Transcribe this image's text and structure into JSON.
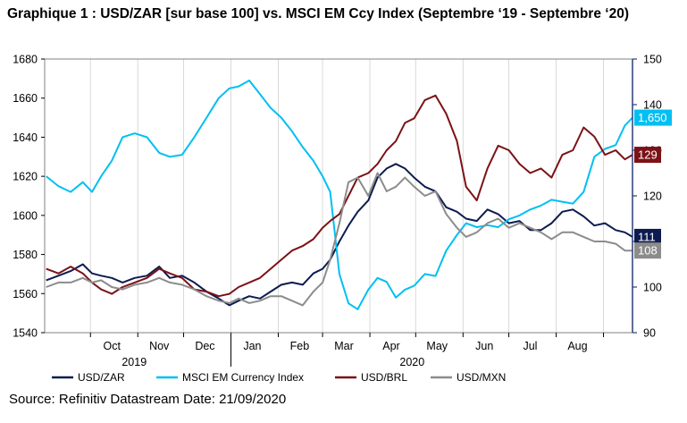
{
  "title": "Graphique 1 : USD/ZAR [sur base 100] vs. MSCI EM Ccy Index (Septembre ‘19 - Septembre ‘20)",
  "source": "Source: Refinitiv Datastream Date: 21/09/2020",
  "chart_data": {
    "type": "line",
    "left_axis": {
      "range": [
        1540,
        1680
      ],
      "ticks": [
        "1680",
        "1660",
        "1640",
        "1620",
        "1600",
        "1580",
        "1560",
        "1540"
      ]
    },
    "right_axis": {
      "range": [
        90,
        150
      ],
      "ticks": [
        "150",
        "140",
        "130",
        "120",
        "110",
        "100",
        "90"
      ],
      "color": "#2c3e7a"
    },
    "x_range": [
      "2019-09-01",
      "2020-09-20"
    ],
    "month_labels": [
      {
        "label": "Oct",
        "date": "2019-10-15"
      },
      {
        "label": "Nov",
        "date": "2019-11-15"
      },
      {
        "label": "Dec",
        "date": "2019-12-15"
      },
      {
        "label": "Jan",
        "date": "2020-01-15"
      },
      {
        "label": "Feb",
        "date": "2020-02-15"
      },
      {
        "label": "Mar",
        "date": "2020-03-15"
      },
      {
        "label": "Apr",
        "date": "2020-04-15"
      },
      {
        "label": "May",
        "date": "2020-05-15"
      },
      {
        "label": "Jun",
        "date": "2020-06-15"
      },
      {
        "label": "Jul",
        "date": "2020-07-15"
      },
      {
        "label": "Aug",
        "date": "2020-08-15"
      }
    ],
    "month_ticks": [
      "2019-10-01",
      "2019-11-01",
      "2019-12-01",
      "2020-01-01",
      "2020-02-01",
      "2020-03-01",
      "2020-04-01",
      "2020-05-01",
      "2020-06-01",
      "2020-07-01",
      "2020-08-01",
      "2020-09-01"
    ],
    "year_labels": [
      {
        "label": "2019",
        "date": "2019-11-01"
      },
      {
        "label": "2020",
        "date": "2020-05-01"
      }
    ],
    "series": [
      {
        "name": "USD/ZAR",
        "axis": "right",
        "color": "#0d1b4f",
        "end_label": "111",
        "points": [
          [
            "2019-09-02",
            101.5
          ],
          [
            "2019-09-10",
            102.5
          ],
          [
            "2019-09-18",
            103.5
          ],
          [
            "2019-09-26",
            105
          ],
          [
            "2019-10-02",
            103
          ],
          [
            "2019-10-08",
            102.5
          ],
          [
            "2019-10-15",
            102
          ],
          [
            "2019-10-22",
            101
          ],
          [
            "2019-10-30",
            102
          ],
          [
            "2019-11-07",
            102.5
          ],
          [
            "2019-11-15",
            104.5
          ],
          [
            "2019-11-22",
            102
          ],
          [
            "2019-11-30",
            102.5
          ],
          [
            "2019-12-08",
            101
          ],
          [
            "2019-12-16",
            99
          ],
          [
            "2019-12-24",
            97.5
          ],
          [
            "2019-12-31",
            96
          ],
          [
            "2020-01-06",
            97
          ],
          [
            "2020-01-13",
            98
          ],
          [
            "2020-01-20",
            97.5
          ],
          [
            "2020-01-27",
            99
          ],
          [
            "2020-02-03",
            100.5
          ],
          [
            "2020-02-10",
            101
          ],
          [
            "2020-02-17",
            100.5
          ],
          [
            "2020-02-24",
            103
          ],
          [
            "2020-03-01",
            104
          ],
          [
            "2020-03-06",
            106
          ],
          [
            "2020-03-12",
            110
          ],
          [
            "2020-03-18",
            113.5
          ],
          [
            "2020-03-24",
            116.5
          ],
          [
            "2020-03-31",
            119
          ],
          [
            "2020-04-06",
            124
          ],
          [
            "2020-04-12",
            126
          ],
          [
            "2020-04-18",
            127
          ],
          [
            "2020-04-24",
            126
          ],
          [
            "2020-04-30",
            124
          ],
          [
            "2020-05-07",
            122
          ],
          [
            "2020-05-14",
            121
          ],
          [
            "2020-05-21",
            117.5
          ],
          [
            "2020-05-28",
            116.5
          ],
          [
            "2020-06-03",
            115
          ],
          [
            "2020-06-10",
            114.5
          ],
          [
            "2020-06-17",
            117
          ],
          [
            "2020-06-24",
            116
          ],
          [
            "2020-07-01",
            114
          ],
          [
            "2020-07-08",
            114.5
          ],
          [
            "2020-07-15",
            112.5
          ],
          [
            "2020-07-22",
            112.5
          ],
          [
            "2020-07-29",
            114
          ],
          [
            "2020-08-05",
            116.5
          ],
          [
            "2020-08-12",
            117
          ],
          [
            "2020-08-19",
            115.5
          ],
          [
            "2020-08-26",
            113.5
          ],
          [
            "2020-09-02",
            114
          ],
          [
            "2020-09-09",
            112.5
          ],
          [
            "2020-09-15",
            112
          ],
          [
            "2020-09-20",
            111
          ]
        ]
      },
      {
        "name": "MSCI EM Currency Index",
        "axis": "left",
        "color": "#00bff3",
        "end_label": "1,650",
        "points": [
          [
            "2019-09-02",
            1620
          ],
          [
            "2019-09-10",
            1615
          ],
          [
            "2019-09-18",
            1612
          ],
          [
            "2019-09-26",
            1617
          ],
          [
            "2019-10-02",
            1612
          ],
          [
            "2019-10-08",
            1620
          ],
          [
            "2019-10-15",
            1628
          ],
          [
            "2019-10-22",
            1640
          ],
          [
            "2019-10-30",
            1642
          ],
          [
            "2019-11-07",
            1640
          ],
          [
            "2019-11-15",
            1632
          ],
          [
            "2019-11-22",
            1630
          ],
          [
            "2019-11-30",
            1631
          ],
          [
            "2019-12-08",
            1640
          ],
          [
            "2019-12-16",
            1650
          ],
          [
            "2019-12-24",
            1660
          ],
          [
            "2019-12-31",
            1665
          ],
          [
            "2020-01-06",
            1666
          ],
          [
            "2020-01-13",
            1669
          ],
          [
            "2020-01-20",
            1662
          ],
          [
            "2020-01-27",
            1655
          ],
          [
            "2020-02-03",
            1650
          ],
          [
            "2020-02-10",
            1643
          ],
          [
            "2020-02-17",
            1635
          ],
          [
            "2020-02-24",
            1628
          ],
          [
            "2020-03-01",
            1620
          ],
          [
            "2020-03-06",
            1612
          ],
          [
            "2020-03-12",
            1570
          ],
          [
            "2020-03-18",
            1555
          ],
          [
            "2020-03-24",
            1552
          ],
          [
            "2020-03-31",
            1562
          ],
          [
            "2020-04-06",
            1568
          ],
          [
            "2020-04-12",
            1566
          ],
          [
            "2020-04-18",
            1558
          ],
          [
            "2020-04-24",
            1562
          ],
          [
            "2020-04-30",
            1564
          ],
          [
            "2020-05-07",
            1570
          ],
          [
            "2020-05-14",
            1569
          ],
          [
            "2020-05-21",
            1582
          ],
          [
            "2020-05-28",
            1590
          ],
          [
            "2020-06-03",
            1596
          ],
          [
            "2020-06-10",
            1594
          ],
          [
            "2020-06-17",
            1595
          ],
          [
            "2020-06-24",
            1594
          ],
          [
            "2020-07-01",
            1598
          ],
          [
            "2020-07-08",
            1600
          ],
          [
            "2020-07-15",
            1603
          ],
          [
            "2020-07-22",
            1605
          ],
          [
            "2020-07-29",
            1608
          ],
          [
            "2020-08-05",
            1607
          ],
          [
            "2020-08-12",
            1606
          ],
          [
            "2020-08-19",
            1612
          ],
          [
            "2020-08-26",
            1630
          ],
          [
            "2020-09-02",
            1634
          ],
          [
            "2020-09-09",
            1636
          ],
          [
            "2020-09-15",
            1646
          ],
          [
            "2020-09-20",
            1650
          ]
        ]
      },
      {
        "name": "USD/BRL",
        "axis": "right",
        "color": "#7b1216",
        "end_label": "129",
        "points": [
          [
            "2019-09-02",
            104
          ],
          [
            "2019-09-10",
            103
          ],
          [
            "2019-09-18",
            104.5
          ],
          [
            "2019-09-26",
            103
          ],
          [
            "2019-10-02",
            101
          ],
          [
            "2019-10-08",
            99.5
          ],
          [
            "2019-10-15",
            98.5
          ],
          [
            "2019-10-22",
            100
          ],
          [
            "2019-10-30",
            101
          ],
          [
            "2019-11-07",
            102
          ],
          [
            "2019-11-15",
            104
          ],
          [
            "2019-11-22",
            103
          ],
          [
            "2019-11-30",
            102
          ],
          [
            "2019-12-08",
            99.5
          ],
          [
            "2019-12-16",
            99
          ],
          [
            "2019-12-24",
            98
          ],
          [
            "2019-12-31",
            98.5
          ],
          [
            "2020-01-06",
            100
          ],
          [
            "2020-01-13",
            101
          ],
          [
            "2020-01-20",
            102
          ],
          [
            "2020-01-27",
            104
          ],
          [
            "2020-02-03",
            106
          ],
          [
            "2020-02-10",
            108
          ],
          [
            "2020-02-17",
            109
          ],
          [
            "2020-02-24",
            110.5
          ],
          [
            "2020-03-01",
            113
          ],
          [
            "2020-03-06",
            114.5
          ],
          [
            "2020-03-12",
            116
          ],
          [
            "2020-03-18",
            120
          ],
          [
            "2020-03-24",
            124
          ],
          [
            "2020-03-31",
            125
          ],
          [
            "2020-04-06",
            127
          ],
          [
            "2020-04-12",
            130
          ],
          [
            "2020-04-18",
            132
          ],
          [
            "2020-04-24",
            136
          ],
          [
            "2020-04-30",
            137
          ],
          [
            "2020-05-07",
            141
          ],
          [
            "2020-05-14",
            142
          ],
          [
            "2020-05-21",
            138
          ],
          [
            "2020-05-28",
            132
          ],
          [
            "2020-06-03",
            122
          ],
          [
            "2020-06-10",
            119
          ],
          [
            "2020-06-17",
            126
          ],
          [
            "2020-06-24",
            131
          ],
          [
            "2020-07-01",
            130
          ],
          [
            "2020-07-08",
            127
          ],
          [
            "2020-07-15",
            125
          ],
          [
            "2020-07-22",
            126
          ],
          [
            "2020-07-29",
            124
          ],
          [
            "2020-08-05",
            129
          ],
          [
            "2020-08-12",
            130
          ],
          [
            "2020-08-19",
            135
          ],
          [
            "2020-08-26",
            133
          ],
          [
            "2020-09-02",
            129
          ],
          [
            "2020-09-09",
            130
          ],
          [
            "2020-09-15",
            128
          ],
          [
            "2020-09-20",
            129
          ]
        ]
      },
      {
        "name": "USD/MXN",
        "axis": "right",
        "color": "#8c8c8c",
        "end_label": "108",
        "points": [
          [
            "2019-09-02",
            100
          ],
          [
            "2019-09-10",
            101
          ],
          [
            "2019-09-18",
            101
          ],
          [
            "2019-09-26",
            102
          ],
          [
            "2019-10-02",
            101
          ],
          [
            "2019-10-08",
            101.5
          ],
          [
            "2019-10-15",
            100
          ],
          [
            "2019-10-22",
            99.5
          ],
          [
            "2019-10-30",
            100.5
          ],
          [
            "2019-11-07",
            101
          ],
          [
            "2019-11-15",
            102
          ],
          [
            "2019-11-22",
            101
          ],
          [
            "2019-11-30",
            100.5
          ],
          [
            "2019-12-08",
            99.5
          ],
          [
            "2019-12-16",
            98
          ],
          [
            "2019-12-24",
            97
          ],
          [
            "2019-12-31",
            96.5
          ],
          [
            "2020-01-06",
            97.5
          ],
          [
            "2020-01-13",
            96.5
          ],
          [
            "2020-01-20",
            97
          ],
          [
            "2020-01-27",
            98
          ],
          [
            "2020-02-03",
            98
          ],
          [
            "2020-02-10",
            97
          ],
          [
            "2020-02-17",
            96
          ],
          [
            "2020-02-24",
            99
          ],
          [
            "2020-03-01",
            101
          ],
          [
            "2020-03-06",
            106
          ],
          [
            "2020-03-12",
            114
          ],
          [
            "2020-03-18",
            123
          ],
          [
            "2020-03-24",
            124
          ],
          [
            "2020-03-31",
            120
          ],
          [
            "2020-04-06",
            125
          ],
          [
            "2020-04-12",
            121
          ],
          [
            "2020-04-18",
            122
          ],
          [
            "2020-04-24",
            124
          ],
          [
            "2020-04-30",
            122
          ],
          [
            "2020-05-07",
            120
          ],
          [
            "2020-05-14",
            121
          ],
          [
            "2020-05-21",
            116
          ],
          [
            "2020-05-28",
            113
          ],
          [
            "2020-06-03",
            111
          ],
          [
            "2020-06-10",
            112
          ],
          [
            "2020-06-17",
            114
          ],
          [
            "2020-06-24",
            115
          ],
          [
            "2020-07-01",
            113
          ],
          [
            "2020-07-08",
            114
          ],
          [
            "2020-07-15",
            113
          ],
          [
            "2020-07-22",
            112
          ],
          [
            "2020-07-29",
            110.5
          ],
          [
            "2020-08-05",
            112
          ],
          [
            "2020-08-12",
            112
          ],
          [
            "2020-08-19",
            111
          ],
          [
            "2020-08-26",
            110
          ],
          [
            "2020-09-02",
            110
          ],
          [
            "2020-09-09",
            109.5
          ],
          [
            "2020-09-15",
            108
          ],
          [
            "2020-09-20",
            108
          ]
        ]
      }
    ]
  }
}
